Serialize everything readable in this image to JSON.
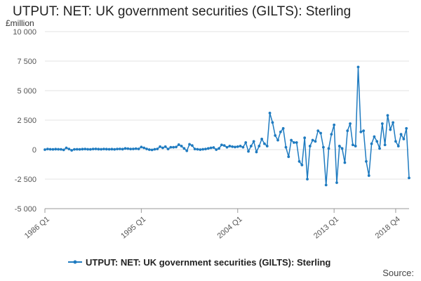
{
  "chart_data": {
    "type": "line",
    "title": "UTPUT: NET: UK government securities (GILTS): Sterling",
    "ylabel": "£million",
    "xlabel": "",
    "ylim": [
      -5000,
      10000
    ],
    "yticks": [
      -5000,
      -2500,
      0,
      2500,
      5000,
      7500,
      10000
    ],
    "ytick_labels": [
      "-5 000",
      "-2 500",
      "0",
      "2 500",
      "5 000",
      "7 500",
      "10 000"
    ],
    "xtick_labels": [
      "1986 Q1",
      "1995 Q1",
      "2004 Q1",
      "2013 Q1",
      "2018 Q4"
    ],
    "xtick_index": [
      0,
      36,
      72,
      108,
      131
    ],
    "grid": true,
    "legend": "bottom",
    "series": [
      {
        "name": "UTPUT: NET: UK government securities (GILTS): Sterling",
        "color": "#1f7bc0",
        "values": [
          0,
          50,
          30,
          20,
          40,
          30,
          20,
          -20,
          150,
          50,
          -60,
          20,
          30,
          20,
          40,
          50,
          30,
          20,
          50,
          60,
          40,
          30,
          50,
          40,
          30,
          40,
          20,
          50,
          60,
          40,
          100,
          80,
          50,
          60,
          80,
          60,
          220,
          150,
          60,
          0,
          -20,
          30,
          60,
          250,
          150,
          250,
          50,
          200,
          200,
          220,
          420,
          300,
          100,
          -100,
          450,
          350,
          50,
          30,
          0,
          30,
          50,
          100,
          150,
          180,
          0,
          100,
          400,
          350,
          200,
          300,
          250,
          220,
          250,
          300,
          200,
          600,
          -150,
          300,
          700,
          -200,
          300,
          900,
          500,
          300,
          3100,
          2300,
          1200,
          800,
          1500,
          1800,
          200,
          -600,
          800,
          600,
          600,
          -1000,
          -1300,
          1000,
          -2500,
          300,
          800,
          700,
          1600,
          1400,
          200,
          -3000,
          100,
          1300,
          2100,
          -2800,
          300,
          100,
          -1100,
          1600,
          2200,
          400,
          300,
          7000,
          1500,
          1600,
          -1000,
          -2200,
          500,
          1100,
          700,
          100,
          2200,
          400,
          2900,
          1700,
          2300,
          700,
          300,
          1300,
          900,
          1800,
          -2400
        ]
      }
    ]
  },
  "source_label": "Source:"
}
